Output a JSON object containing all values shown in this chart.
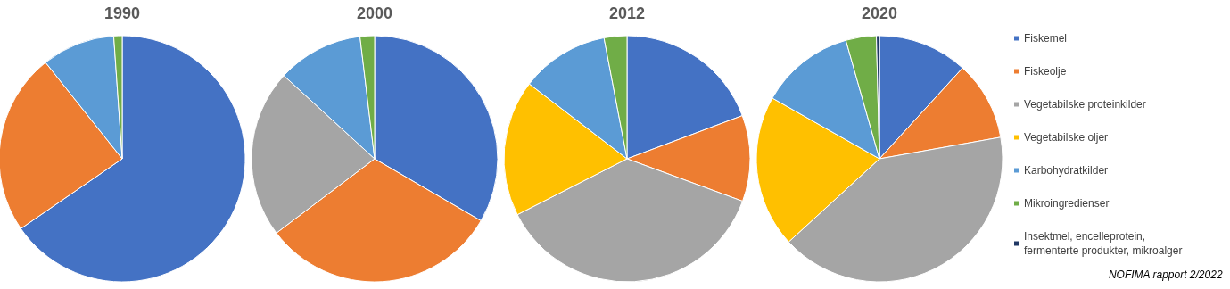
{
  "chart_data": {
    "type": "pie",
    "categories": [
      "Fiskemel",
      "Fiskeolje",
      "Vegetabilske proteinkilder",
      "Vegetabilske oljer",
      "Karbohydratkilder",
      "Mikroingredienser",
      "Insektmel, encelleprotein, fermenterte produkter, mikroalger"
    ],
    "colors": [
      "#4472c4",
      "#ed7d31",
      "#a5a5a5",
      "#ffc000",
      "#5b9bd5",
      "#70ad47",
      "#203864"
    ],
    "series": [
      {
        "name": "1990",
        "values": [
          65.4,
          23.9,
          null,
          null,
          9.6,
          1.1,
          null
        ]
      },
      {
        "name": "2000",
        "values": [
          33.4,
          31.3,
          22.1,
          null,
          11.3,
          1.9,
          null
        ]
      },
      {
        "name": "2012",
        "values": [
          19.3,
          11.3,
          36.9,
          17.9,
          11.6,
          3.0,
          null
        ]
      },
      {
        "name": "2020",
        "values": [
          11.8,
          10.4,
          41.0,
          20.0,
          12.4,
          4.0,
          0.4
        ]
      }
    ],
    "legend": "right",
    "annotations": [
      "NOFIMA rapport 2/2022"
    ]
  }
}
